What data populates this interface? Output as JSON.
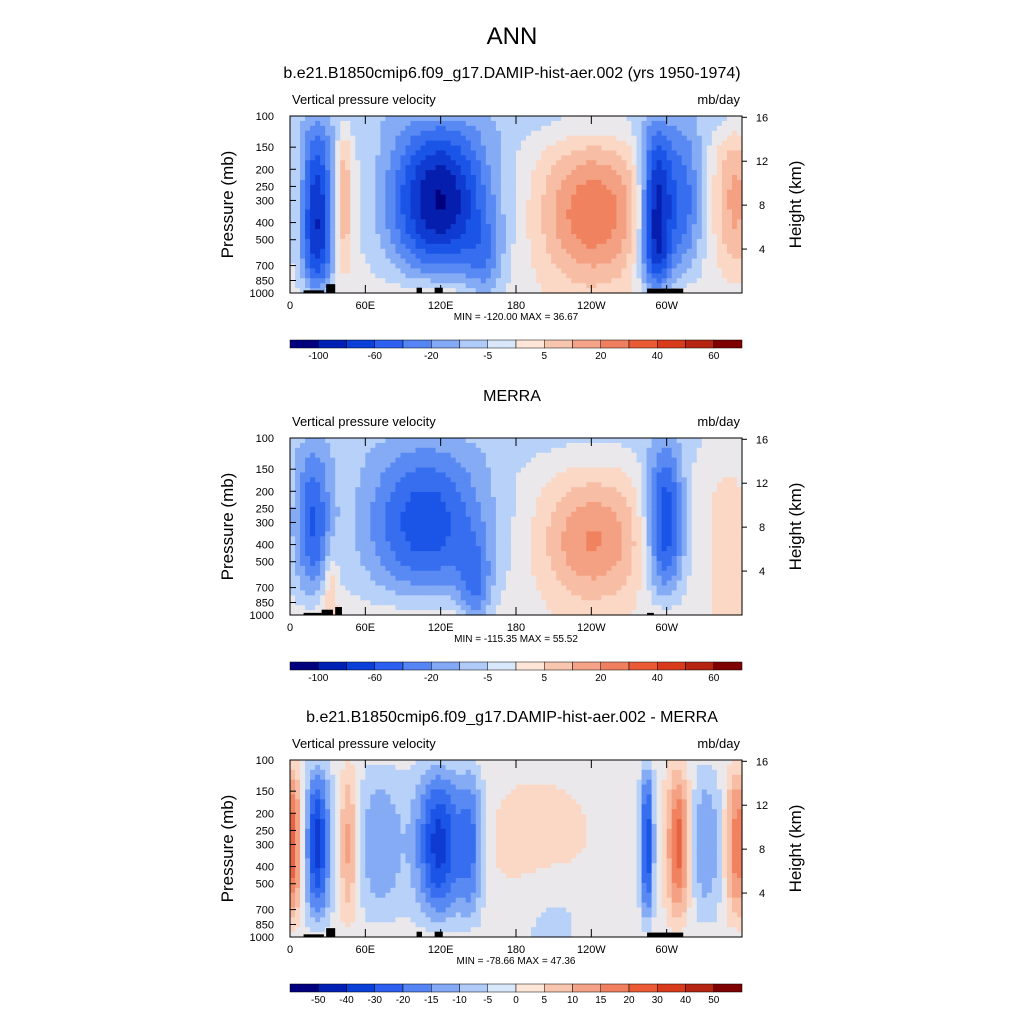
{
  "figure": {
    "title": "ANN"
  },
  "chart_data": [
    {
      "type": "heatmap",
      "title": "b.e21.B1850cmip6.f09_g17.DAMIP-hist-aer.002 (yrs 1950-1974)",
      "left_label": "Vertical pressure velocity",
      "right_label": "mb/day",
      "ylabel": "Pressure (mb)",
      "ylabel_right": "Height (km)",
      "y_ticks": [
        "100",
        "150",
        "200",
        "250",
        "300",
        "400",
        "500",
        "700",
        "850",
        "1000"
      ],
      "y_right_ticks": [
        "16",
        "12",
        "8",
        "4"
      ],
      "x_ticks": [
        "0",
        "60E",
        "120E",
        "180",
        "120W",
        "60W"
      ],
      "stats": "MIN = -120.00  MAX =  36.67",
      "colorbar_labels": [
        "-100",
        "-60",
        "-20",
        "-5",
        "5",
        "20",
        "40",
        "60"
      ],
      "colorbar_colors": [
        "#00007f",
        "#0020b4",
        "#0a3fd8",
        "#2c5ff0",
        "#5584f4",
        "#82a8f6",
        "#b0cbf7",
        "#d9e7fb",
        "#fde6d8",
        "#f8c5ae",
        "#f4a388",
        "#f07f5f",
        "#ea5a35",
        "#d83a1c",
        "#b52512",
        "#7f0000"
      ]
    },
    {
      "type": "heatmap",
      "title": "MERRA",
      "left_label": "Vertical pressure velocity",
      "right_label": "mb/day",
      "ylabel": "Pressure (mb)",
      "ylabel_right": "Height (km)",
      "y_ticks": [
        "100",
        "150",
        "200",
        "250",
        "300",
        "400",
        "500",
        "700",
        "850",
        "1000"
      ],
      "y_right_ticks": [
        "16",
        "12",
        "8",
        "4"
      ],
      "x_ticks": [
        "0",
        "60E",
        "120E",
        "180",
        "120W",
        "60W"
      ],
      "stats": "MIN = -115.35  MAX =  55.52",
      "colorbar_labels": [
        "-100",
        "-60",
        "-20",
        "-5",
        "5",
        "20",
        "40",
        "60"
      ],
      "colorbar_colors": [
        "#00007f",
        "#0020b4",
        "#0a3fd8",
        "#2c5ff0",
        "#5584f4",
        "#82a8f6",
        "#b0cbf7",
        "#d9e7fb",
        "#fde6d8",
        "#f8c5ae",
        "#f4a388",
        "#f07f5f",
        "#ea5a35",
        "#d83a1c",
        "#b52512",
        "#7f0000"
      ]
    },
    {
      "type": "heatmap",
      "title": "b.e21.B1850cmip6.f09_g17.DAMIP-hist-aer.002 - MERRA",
      "left_label": "Vertical pressure velocity",
      "right_label": "mb/day",
      "ylabel": "Pressure (mb)",
      "ylabel_right": "Height (km)",
      "y_ticks": [
        "100",
        "150",
        "200",
        "250",
        "300",
        "400",
        "500",
        "700",
        "850",
        "1000"
      ],
      "y_right_ticks": [
        "16",
        "12",
        "8",
        "4"
      ],
      "x_ticks": [
        "0",
        "60E",
        "120E",
        "180",
        "120W",
        "60W"
      ],
      "stats": "MIN = -78.66  MAX =  47.36",
      "colorbar_labels": [
        "-50",
        "-40",
        "-30",
        "-20",
        "-15",
        "-10",
        "-5",
        "0",
        "5",
        "10",
        "15",
        "20",
        "30",
        "40",
        "50"
      ],
      "colorbar_colors": [
        "#00007f",
        "#0020b4",
        "#0a3fd8",
        "#2c5ff0",
        "#5584f4",
        "#82a8f6",
        "#b0cbf7",
        "#d9e7fb",
        "#fde6d8",
        "#f8c5ae",
        "#f4a388",
        "#f07f5f",
        "#ea5a35",
        "#d83a1c",
        "#b52512",
        "#7f0000"
      ]
    }
  ]
}
